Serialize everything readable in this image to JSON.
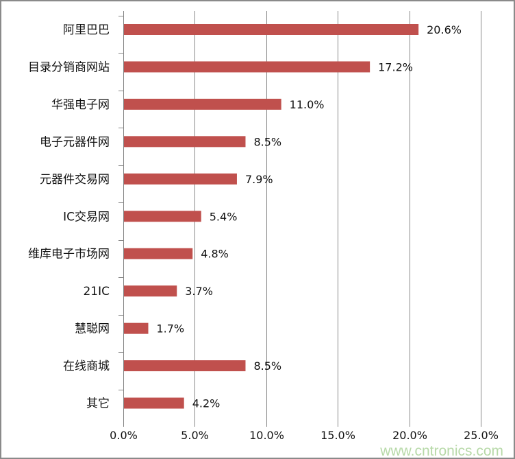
{
  "chart_data": {
    "type": "bar",
    "orientation": "horizontal",
    "categories": [
      "阿里巴巴",
      "目录分销商网站",
      "华强电子网",
      "电子元器件网",
      "元器件交易网",
      "IC交易网",
      "维库电子市场网",
      "21IC",
      "慧聪网",
      "在线商城",
      "其它"
    ],
    "values": [
      20.6,
      17.2,
      11.0,
      8.5,
      7.9,
      5.4,
      4.8,
      3.7,
      1.7,
      8.5,
      4.2
    ],
    "data_labels": [
      "20.6%",
      "17.2%",
      "11.0%",
      "8.5%",
      "7.9%",
      "5.4%",
      "4.8%",
      "3.7%",
      "1.7%",
      "8.5%",
      "4.2%"
    ],
    "x_ticks": [
      "0.0%",
      "5.0%",
      "10.0%",
      "15.0%",
      "20.0%",
      "25.0%"
    ],
    "xlim": [
      0,
      25
    ],
    "title": "",
    "xlabel": "",
    "ylabel": "",
    "grid": "vertical",
    "legend": "none",
    "bar_color": "#c0504d"
  },
  "watermark": "www.cntronics.com"
}
